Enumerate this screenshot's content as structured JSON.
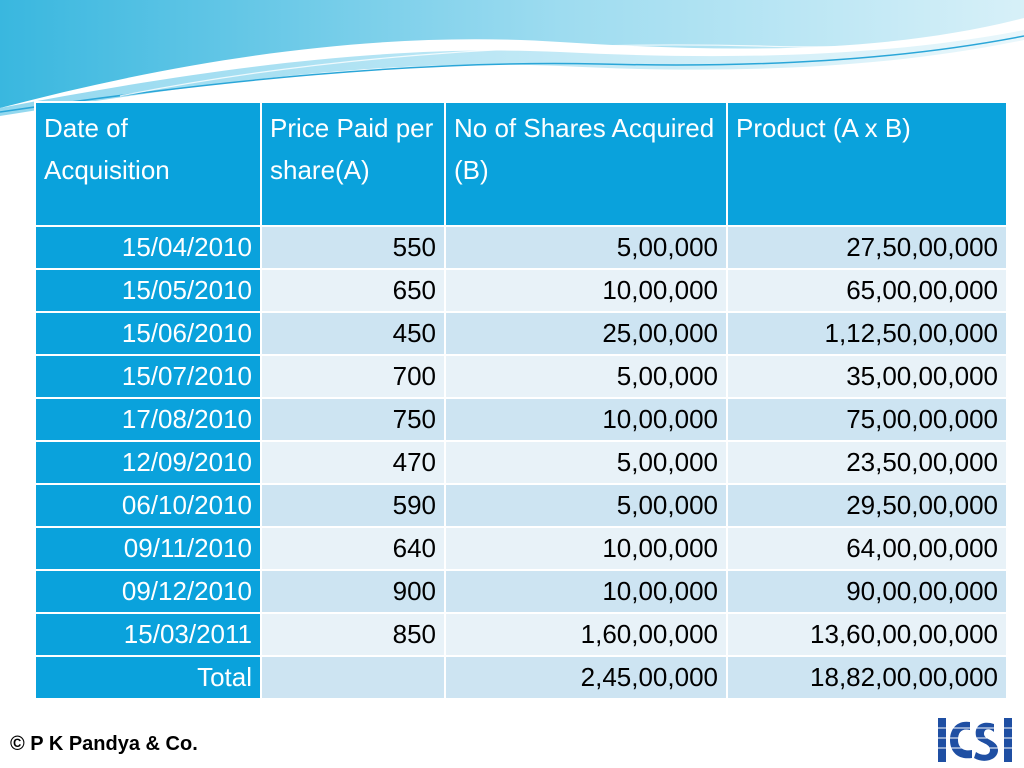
{
  "table": {
    "headers": [
      "Date of Acquisition",
      "Price Paid per share(A)",
      "No of Shares Acquired (B)",
      "Product (A x B)"
    ],
    "rows": [
      [
        "15/04/2010",
        "550",
        "5,00,000",
        "27,50,00,000"
      ],
      [
        "15/05/2010",
        "650",
        "10,00,000",
        "65,00,00,000"
      ],
      [
        "15/06/2010",
        "450",
        "25,00,000",
        "1,12,50,00,000"
      ],
      [
        "15/07/2010",
        "700",
        "5,00,000",
        "35,00,00,000"
      ],
      [
        "17/08/2010",
        "750",
        "10,00,000",
        "75,00,00,000"
      ],
      [
        "12/09/2010",
        "470",
        "5,00,000",
        "23,50,00,000"
      ],
      [
        "06/10/2010",
        "590",
        "5,00,000",
        "29,50,00,000"
      ],
      [
        "09/11/2010",
        "640",
        "10,00,000",
        "64,00,00,000"
      ],
      [
        "09/12/2010",
        "900",
        "10,00,000",
        "90,00,00,000"
      ],
      [
        "15/03/2011",
        "850",
        "1,60,00,000",
        "13,60,00,00,000"
      ],
      [
        "Total",
        "",
        "2,45,00,000",
        "18,82,00,00,000"
      ]
    ]
  },
  "footer": {
    "copyright": "© P K Pandya & Co."
  },
  "colors": {
    "header": "#0aa2dc",
    "row_light": "#e8f2f8",
    "row_dark": "#cde4f2"
  },
  "icons": {
    "logo": "icsi-logo"
  }
}
